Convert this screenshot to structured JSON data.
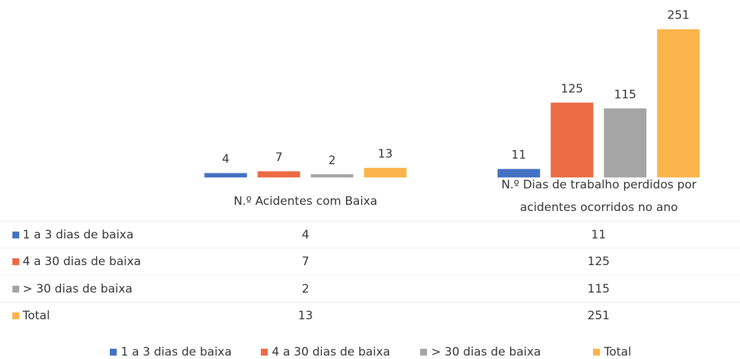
{
  "chart_data": {
    "type": "bar",
    "categories": [
      "N.º Acidentes com  Baixa",
      "N.º Dias de trabalho perdidos por acidentes ocorridos no ano"
    ],
    "series": [
      {
        "name": "1 a 3 dias de baixa",
        "color": "#4472c4",
        "values": [
          4,
          11
        ]
      },
      {
        "name": "4 a 30 dias de baixa",
        "color": "#ec6b45",
        "values": [
          7,
          125
        ]
      },
      {
        "name": "> 30 dias de baixa",
        "color": "#a5a5a5",
        "values": [
          2,
          115
        ]
      },
      {
        "name": "Total",
        "color": "#fbb44b",
        "values": [
          13,
          251
        ]
      }
    ],
    "ylim": [
      0,
      260
    ]
  }
}
